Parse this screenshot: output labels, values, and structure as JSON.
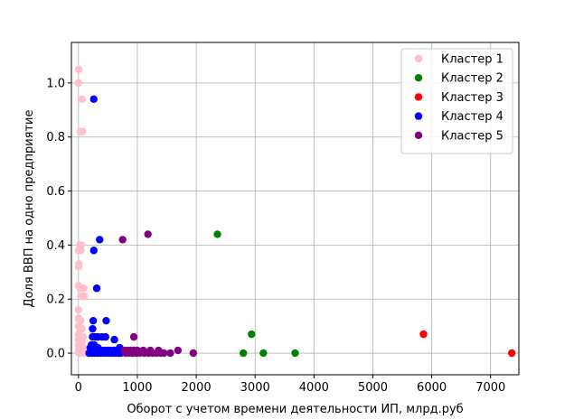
{
  "chart_data": {
    "type": "scatter",
    "title": "",
    "xlabel": "Оборот с учетом времени деятельности ИП, млрд.руб",
    "ylabel": "Доля ВВП на одно предприятие",
    "xlim": [
      -120,
      7480
    ],
    "ylim": [
      -0.08,
      1.15
    ],
    "xticks": [
      0,
      1000,
      2000,
      3000,
      4000,
      5000,
      6000,
      7000
    ],
    "xtick_labels": [
      "0",
      "1000",
      "2000",
      "3000",
      "4000",
      "5000",
      "6000",
      "7000"
    ],
    "yticks": [
      0.0,
      0.2,
      0.4,
      0.6,
      0.8,
      1.0
    ],
    "ytick_labels": [
      "0.0",
      "0.2",
      "0.4",
      "0.6",
      "0.8",
      "1.0"
    ],
    "grid": true,
    "legend_position": "top-right",
    "series": [
      {
        "name": "Кластер 1",
        "color": "#ffc0cb",
        "points": [
          [
            5,
            1.05
          ],
          [
            0,
            1.0
          ],
          [
            60,
            0.94
          ],
          [
            30,
            0.82
          ],
          [
            70,
            0.82
          ],
          [
            20,
            0.4
          ],
          [
            50,
            0.4
          ],
          [
            0,
            0.38
          ],
          [
            40,
            0.38
          ],
          [
            5,
            0.33
          ],
          [
            0,
            0.32
          ],
          [
            0,
            0.25
          ],
          [
            30,
            0.24
          ],
          [
            50,
            0.24
          ],
          [
            90,
            0.24
          ],
          [
            40,
            0.21
          ],
          [
            70,
            0.21
          ],
          [
            100,
            0.21
          ],
          [
            0,
            0.16
          ],
          [
            0,
            0.13
          ],
          [
            20,
            0.12
          ],
          [
            40,
            0.12
          ],
          [
            0,
            0.1
          ],
          [
            30,
            0.09
          ],
          [
            60,
            0.09
          ],
          [
            0,
            0.07
          ],
          [
            20,
            0.06
          ],
          [
            50,
            0.06
          ],
          [
            80,
            0.06
          ],
          [
            0,
            0.05
          ],
          [
            30,
            0.04
          ],
          [
            60,
            0.04
          ],
          [
            0,
            0.03
          ],
          [
            20,
            0.02
          ],
          [
            50,
            0.02
          ],
          [
            80,
            0.02
          ],
          [
            0,
            0.01
          ],
          [
            30,
            0.01
          ],
          [
            60,
            0.01
          ],
          [
            100,
            0.01
          ],
          [
            10,
            0.0
          ],
          [
            40,
            0.0
          ],
          [
            70,
            0.0
          ],
          [
            110,
            0.0
          ],
          [
            150,
            0.0
          ],
          [
            190,
            0.0
          ]
        ]
      },
      {
        "name": "Кластер 2",
        "color": "#008000",
        "points": [
          [
            2360,
            0.44
          ],
          [
            2940,
            0.07
          ],
          [
            2800,
            0.0
          ],
          [
            3140,
            0.0
          ],
          [
            3680,
            0.0
          ]
        ]
      },
      {
        "name": "Кластер 3",
        "color": "#ff0000",
        "points": [
          [
            5860,
            0.07
          ],
          [
            7360,
            0.0
          ]
        ]
      },
      {
        "name": "Кластер 4",
        "color": "#0000ff",
        "points": [
          [
            260,
            0.94
          ],
          [
            360,
            0.42
          ],
          [
            260,
            0.38
          ],
          [
            310,
            0.24
          ],
          [
            250,
            0.12
          ],
          [
            470,
            0.12
          ],
          [
            240,
            0.09
          ],
          [
            240,
            0.06
          ],
          [
            280,
            0.06
          ],
          [
            330,
            0.06
          ],
          [
            400,
            0.06
          ],
          [
            460,
            0.06
          ],
          [
            610,
            0.05
          ],
          [
            220,
            0.03
          ],
          [
            270,
            0.03
          ],
          [
            330,
            0.02
          ],
          [
            200,
            0.02
          ],
          [
            260,
            0.01
          ],
          [
            300,
            0.01
          ],
          [
            340,
            0.01
          ],
          [
            390,
            0.01
          ],
          [
            440,
            0.01
          ],
          [
            490,
            0.01
          ],
          [
            540,
            0.01
          ],
          [
            600,
            0.01
          ],
          [
            650,
            0.01
          ],
          [
            700,
            0.02
          ],
          [
            750,
            0.01
          ],
          [
            180,
            0.0
          ],
          [
            230,
            0.0
          ],
          [
            280,
            0.0
          ],
          [
            330,
            0.0
          ],
          [
            380,
            0.0
          ],
          [
            430,
            0.0
          ],
          [
            480,
            0.0
          ],
          [
            530,
            0.0
          ],
          [
            580,
            0.0
          ],
          [
            630,
            0.0
          ],
          [
            680,
            0.0
          ],
          [
            720,
            0.0
          ]
        ]
      },
      {
        "name": "Кластер 5",
        "color": "#800080",
        "points": [
          [
            1180,
            0.44
          ],
          [
            750,
            0.42
          ],
          [
            940,
            0.06
          ],
          [
            780,
            0.01
          ],
          [
            830,
            0.01
          ],
          [
            880,
            0.01
          ],
          [
            940,
            0.01
          ],
          [
            1000,
            0.01
          ],
          [
            1100,
            0.01
          ],
          [
            1220,
            0.01
          ],
          [
            1360,
            0.01
          ],
          [
            1690,
            0.01
          ],
          [
            800,
            0.0
          ],
          [
            860,
            0.0
          ],
          [
            920,
            0.0
          ],
          [
            980,
            0.0
          ],
          [
            1040,
            0.0
          ],
          [
            1120,
            0.0
          ],
          [
            1190,
            0.0
          ],
          [
            1260,
            0.0
          ],
          [
            1330,
            0.0
          ],
          [
            1400,
            0.0
          ],
          [
            1450,
            0.0
          ],
          [
            1560,
            0.0
          ],
          [
            1950,
            0.0
          ]
        ]
      }
    ]
  }
}
